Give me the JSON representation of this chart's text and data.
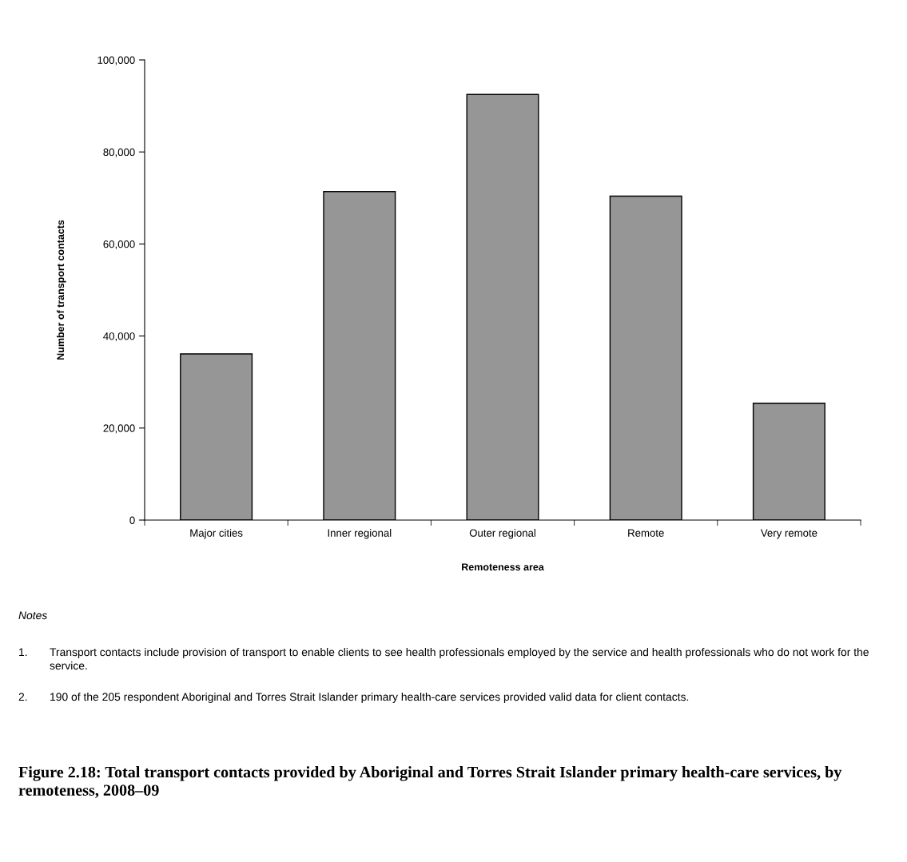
{
  "chart_data": {
    "type": "bar",
    "title": "Figure 2.18: Total transport contacts provided by Aboriginal and Torres Strait Islander primary health-care services, by remoteness, 2008–09",
    "xlabel": "Remoteness area",
    "ylabel": "Number of transport contacts",
    "categories": [
      "Major cities",
      "Inner regional",
      "Outer regional",
      "Remote",
      "Very remote"
    ],
    "values": [
      36100,
      71400,
      92500,
      70400,
      25400
    ],
    "color": "#969696",
    "ylim": [
      0,
      100000
    ],
    "yticks": [
      {
        "value": 0,
        "label": "0"
      },
      {
        "value": 20000,
        "label": "20,000"
      },
      {
        "value": 40000,
        "label": "40,000"
      },
      {
        "value": 60000,
        "label": "60,000"
      },
      {
        "value": 80000,
        "label": "80,000"
      },
      {
        "value": 100000,
        "label": "100,000"
      }
    ],
    "grid": false,
    "legend": false,
    "annotations": [
      "Notes",
      "1.\tTransport contacts include provision of transport to enable clients to see health professionals employed by the service and health professionals who do not work for the service.",
      "2.\t190 of the 205 respondent Aboriginal and Torres Strait Islander primary health-care services provided valid data for client contacts."
    ]
  }
}
